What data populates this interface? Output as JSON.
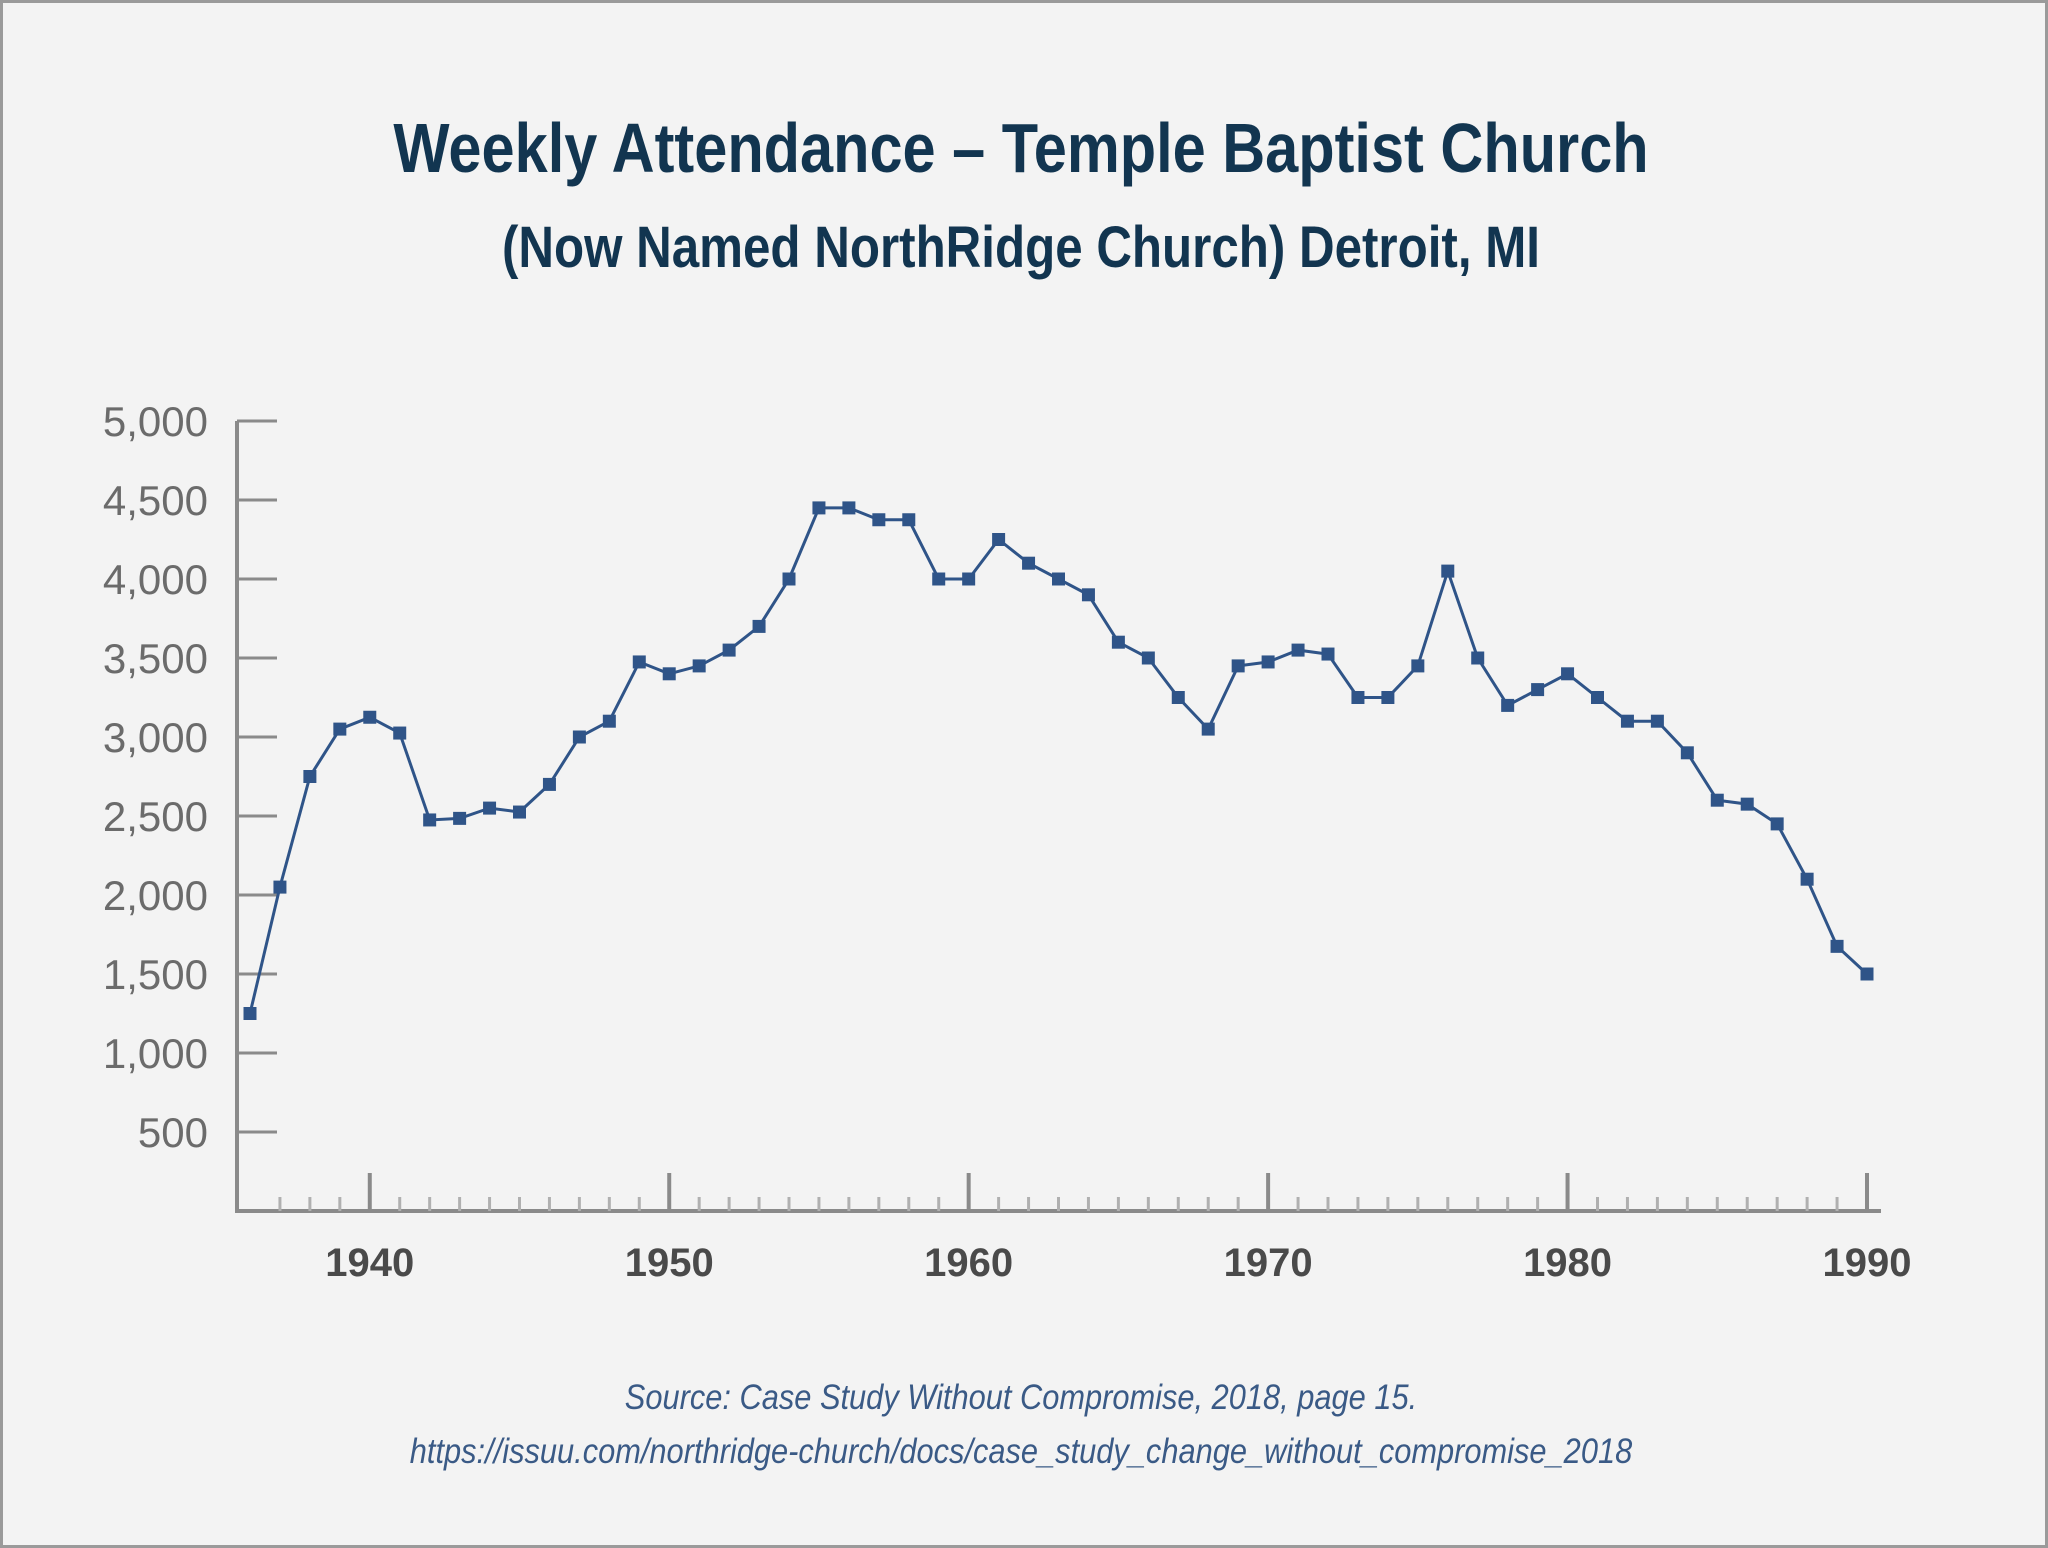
{
  "chart_data": {
    "type": "line",
    "title": "Weekly Attendance – Temple Baptist Church",
    "subtitle": "(Now Named NorthRidge Church) Detroit, MI",
    "xlabel": "",
    "ylabel": "",
    "xlim": [
      1936,
      1990
    ],
    "ylim": [
      0,
      5000
    ],
    "y_ticks": [
      500,
      1000,
      1500,
      2000,
      2500,
      3000,
      3500,
      4000,
      4500,
      5000
    ],
    "y_tick_labels": [
      "500",
      "1,000",
      "1,500",
      "2,000",
      "2,500",
      "3,000",
      "3,500",
      "4,000",
      "4,500",
      "5,000"
    ],
    "x_major_ticks": [
      1940,
      1950,
      1960,
      1970,
      1980,
      1990
    ],
    "x_tick_labels": [
      "1940",
      "1950",
      "1960",
      "1970",
      "1980",
      "1990"
    ],
    "grid": false,
    "legend": "none",
    "line_color": "#2f5488",
    "series": [
      {
        "x": [
          1936,
          1937,
          1938,
          1939,
          1940,
          1941,
          1942,
          1943,
          1944,
          1945,
          1946,
          1947,
          1948,
          1949,
          1950,
          1951,
          1952,
          1953,
          1954,
          1955,
          1956,
          1957,
          1958,
          1959,
          1960,
          1961,
          1962,
          1963,
          1964,
          1965,
          1966,
          1967,
          1968,
          1969,
          1970,
          1971,
          1972,
          1973,
          1974,
          1975,
          1976,
          1977,
          1978,
          1979,
          1980,
          1981,
          1982,
          1983,
          1984,
          1985,
          1986,
          1987,
          1988,
          1989,
          1990
        ],
        "values": [
          1250,
          2050,
          2750,
          3050,
          3125,
          3025,
          2475,
          2485,
          2550,
          2525,
          2700,
          3000,
          3100,
          3475,
          3400,
          3450,
          3550,
          3700,
          4000,
          4450,
          4450,
          4375,
          4375,
          4000,
          4000,
          4250,
          4100,
          4000,
          3900,
          3600,
          3500,
          3250,
          3050,
          3450,
          3475,
          3550,
          3525,
          3250,
          3250,
          3450,
          4050,
          3500,
          3200,
          3300,
          3400,
          3250,
          3100,
          3100,
          2900,
          2600,
          2575,
          2450,
          2100,
          1675,
          1500
        ]
      }
    ]
  },
  "source": {
    "line1": "Source: Case Study Without Compromise, 2018, page 15.",
    "line2": "https://issuu.com/northridge-church/docs/case_study_change_without_compromise_2018"
  }
}
